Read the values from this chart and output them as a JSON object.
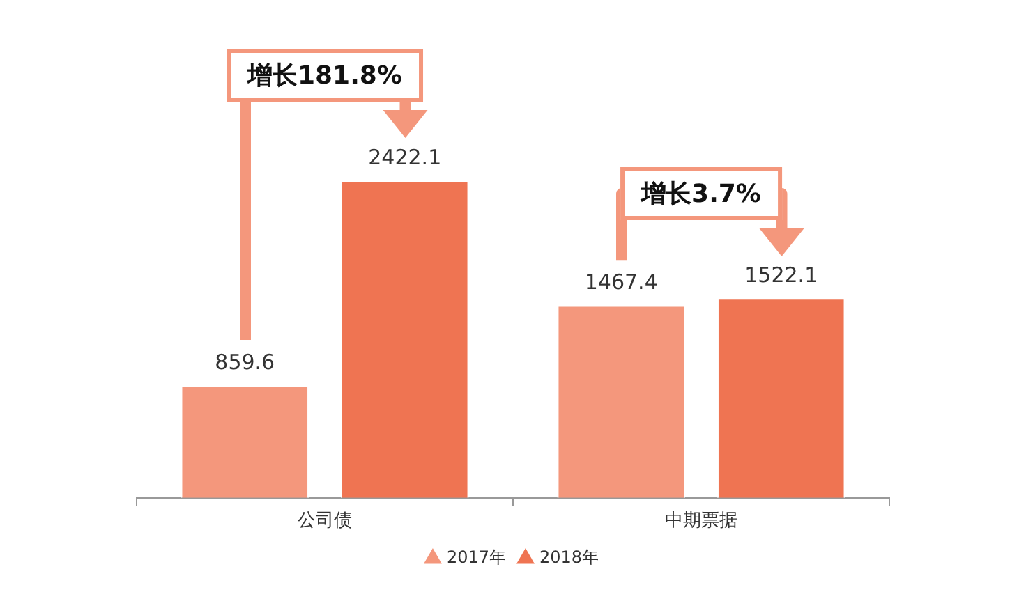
{
  "chart_data": {
    "type": "bar",
    "categories": [
      "公司债",
      "中期票据"
    ],
    "series": [
      {
        "name": "2017年",
        "color": "#f4977c",
        "values": [
          859.6,
          1467.4
        ]
      },
      {
        "name": "2018年",
        "color": "#ef7452",
        "values": [
          2422.1,
          1522.1
        ]
      }
    ],
    "data_labels": true,
    "legend": "bottom",
    "grid": false,
    "annotations": [
      "增长181.8%",
      "增长3.7%"
    ]
  }
}
